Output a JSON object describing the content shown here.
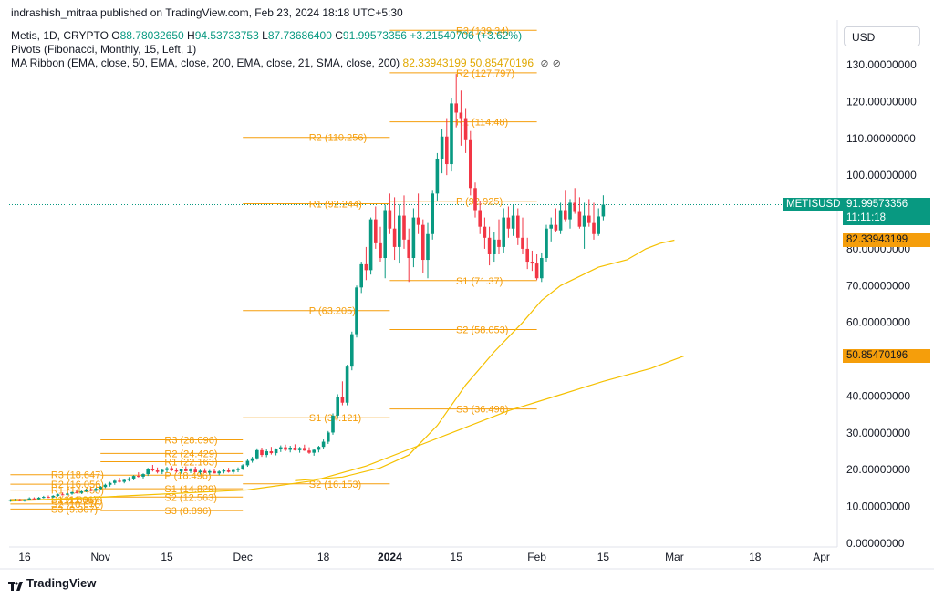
{
  "header": {
    "attribution": "indrashish_mitraa published on TradingView.com, Feb 23, 2024 18:18 UTC+5:30",
    "symbol": "Metis, 1D, CRYPTO",
    "o_label": "O",
    "o_value": "88.78032650",
    "h_label": "H",
    "h_value": "94.53733753",
    "l_label": "L",
    "l_value": "87.73686400",
    "c_label": "C",
    "c_value": "91.99573356",
    "change": "+3.21540706 (+3.62%)",
    "pivots": "Pivots (Fibonacci, Monthly, 15, Left, 1)",
    "ma_ribbon": "MA Ribbon (EMA, close, 50, EMA, close, 200, EMA, close, 21, SMA, close, 200)",
    "ma_val_1": "82.33943199",
    "ma_val_2": "50.85470196"
  },
  "currency": "USD",
  "price_tag": {
    "symbol": "METISUSD",
    "price": "91.99573356",
    "countdown": "11:11:18"
  },
  "ema_tags": [
    "82.33943199",
    "50.85470196"
  ],
  "brand": "TradingView",
  "colors": {
    "up": "#089981",
    "down": "#f23645",
    "pivot": "#f59e0b",
    "ma": "#f5c000"
  },
  "chart_data": {
    "type": "candlestick",
    "y_axis": {
      "ylim": [
        0,
        135
      ],
      "ticks": [
        0,
        10,
        20,
        30,
        40,
        50,
        60,
        70,
        80,
        90,
        100,
        110,
        120,
        130
      ],
      "tick_labels": [
        "0.00000000",
        "10.00000000",
        "20.00000000",
        "30.00000000",
        "40.00000000",
        "50.00000000",
        "60.00000000",
        "70.00000000",
        "80.00000000",
        "90.00000000",
        "100.00000000",
        "110.00000000",
        "120.00000000",
        "130.00000000"
      ]
    },
    "x_axis": {
      "start": "2023-10-13",
      "end": "2024-04-01",
      "ticks": [
        {
          "date": "2023-10-16",
          "label": "16",
          "bold": false
        },
        {
          "date": "2023-11-01",
          "label": "Nov",
          "bold": false
        },
        {
          "date": "2023-11-15",
          "label": "15",
          "bold": false
        },
        {
          "date": "2023-12-01",
          "label": "Dec",
          "bold": false
        },
        {
          "date": "2023-12-18",
          "label": "18",
          "bold": false
        },
        {
          "date": "2024-01-01",
          "label": "2024",
          "bold": true
        },
        {
          "date": "2024-01-15",
          "label": "15",
          "bold": false
        },
        {
          "date": "2024-02-01",
          "label": "Feb",
          "bold": false
        },
        {
          "date": "2024-02-15",
          "label": "15",
          "bold": false
        },
        {
          "date": "2024-03-01",
          "label": "Mar",
          "bold": false
        },
        {
          "date": "2024-03-18",
          "label": "18",
          "bold": false
        },
        {
          "date": "2024-04-01",
          "label": "Apr",
          "bold": false
        }
      ]
    },
    "candles": {
      "start_date": "2023-10-13",
      "ohlc": [
        [
          11.7,
          12.0,
          11.3,
          11.8
        ],
        [
          11.8,
          12.1,
          11.5,
          11.9
        ],
        [
          11.9,
          12.1,
          11.4,
          11.5
        ],
        [
          11.5,
          12.0,
          11.3,
          11.9
        ],
        [
          11.9,
          12.5,
          11.7,
          12.2
        ],
        [
          12.2,
          12.5,
          11.9,
          12.0
        ],
        [
          12.0,
          12.6,
          11.8,
          12.4
        ],
        [
          12.4,
          12.9,
          12.2,
          12.6
        ],
        [
          12.6,
          13.0,
          12.3,
          12.5
        ],
        [
          12.5,
          13.1,
          12.3,
          12.9
        ],
        [
          12.9,
          13.5,
          12.7,
          13.3
        ],
        [
          13.3,
          13.8,
          13.0,
          13.2
        ],
        [
          13.2,
          13.7,
          12.9,
          13.5
        ],
        [
          13.5,
          14.0,
          13.2,
          13.9
        ],
        [
          13.9,
          14.4,
          13.5,
          13.7
        ],
        [
          13.7,
          14.3,
          13.4,
          14.1
        ],
        [
          14.1,
          14.8,
          13.9,
          14.5
        ],
        [
          14.5,
          15.0,
          14.1,
          14.3
        ],
        [
          14.3,
          15.1,
          14.0,
          14.8
        ],
        [
          14.8,
          15.6,
          14.5,
          15.3
        ],
        [
          15.3,
          16.2,
          15.0,
          15.9
        ],
        [
          15.9,
          16.7,
          15.4,
          16.4
        ],
        [
          16.4,
          17.2,
          15.9,
          17.0
        ],
        [
          17.0,
          17.8,
          16.5,
          16.7
        ],
        [
          16.7,
          17.5,
          16.3,
          17.2
        ],
        [
          17.2,
          18.0,
          16.8,
          17.6
        ],
        [
          17.6,
          18.5,
          17.1,
          18.3
        ],
        [
          18.3,
          19.3,
          17.9,
          18.1
        ],
        [
          18.1,
          19.0,
          17.6,
          18.8
        ],
        [
          18.8,
          20.5,
          18.3,
          20.2
        ],
        [
          20.2,
          21.3,
          19.5,
          19.8
        ],
        [
          19.8,
          20.6,
          19.0,
          19.4
        ],
        [
          19.4,
          20.1,
          18.8,
          19.9
        ],
        [
          19.9,
          20.8,
          19.3,
          20.4
        ],
        [
          20.4,
          21.0,
          19.6,
          19.8
        ],
        [
          19.8,
          20.5,
          19.2,
          19.5
        ],
        [
          19.5,
          20.3,
          18.9,
          20.1
        ],
        [
          20.1,
          20.9,
          19.5,
          19.6
        ],
        [
          19.6,
          20.4,
          19.1,
          20.0
        ],
        [
          20.0,
          20.8,
          19.4,
          19.3
        ],
        [
          19.3,
          20.0,
          18.7,
          19.7
        ],
        [
          19.7,
          20.4,
          19.1,
          19.2
        ],
        [
          19.2,
          19.9,
          18.6,
          19.6
        ],
        [
          19.6,
          20.2,
          19.0,
          19.0
        ],
        [
          19.0,
          19.8,
          18.5,
          19.5
        ],
        [
          19.5,
          20.3,
          19.0,
          19.8
        ],
        [
          19.8,
          20.5,
          19.2,
          19.4
        ],
        [
          19.4,
          20.1,
          18.9,
          19.9
        ],
        [
          19.9,
          20.6,
          19.3,
          20.3
        ],
        [
          20.3,
          21.5,
          19.9,
          21.2
        ],
        [
          21.2,
          22.8,
          20.8,
          22.4
        ],
        [
          22.4,
          23.5,
          21.9,
          23.1
        ],
        [
          23.1,
          25.8,
          22.7,
          25.3
        ],
        [
          25.3,
          26.0,
          23.5,
          24.0
        ],
        [
          24.0,
          25.5,
          23.4,
          25.0
        ],
        [
          25.0,
          26.2,
          24.1,
          24.5
        ],
        [
          24.5,
          25.8,
          23.9,
          25.6
        ],
        [
          25.6,
          26.6,
          24.8,
          26.1
        ],
        [
          26.1,
          26.8,
          25.0,
          25.4
        ],
        [
          25.4,
          26.5,
          24.7,
          26.0
        ],
        [
          26.0,
          26.9,
          25.2,
          25.3
        ],
        [
          25.3,
          26.2,
          24.6,
          25.9
        ],
        [
          25.9,
          26.8,
          25.1,
          25.2
        ],
        [
          25.2,
          26.1,
          24.3,
          24.6
        ],
        [
          24.6,
          25.7,
          23.8,
          25.4
        ],
        [
          25.4,
          26.5,
          24.7,
          26.2
        ],
        [
          26.2,
          28.2,
          25.6,
          27.6
        ],
        [
          27.6,
          30.5,
          27.0,
          30.1
        ],
        [
          30.1,
          35.3,
          29.5,
          34.7
        ],
        [
          34.7,
          40.5,
          33.9,
          39.8
        ],
        [
          39.8,
          44.0,
          37.5,
          38.2
        ],
        [
          38.2,
          48.5,
          37.5,
          48.0
        ],
        [
          48.0,
          57.5,
          47.0,
          56.8
        ],
        [
          56.8,
          70.0,
          55.9,
          69.5
        ],
        [
          69.5,
          76.5,
          68.0,
          75.8
        ],
        [
          75.8,
          80.5,
          71.5,
          74.2
        ],
        [
          74.2,
          88.5,
          73.0,
          88.0
        ],
        [
          88.0,
          91.5,
          80.0,
          81.5
        ],
        [
          81.5,
          86.0,
          76.5,
          77.5
        ],
        [
          77.5,
          92.0,
          72.0,
          90.5
        ],
        [
          90.5,
          95.0,
          84.0,
          85.5
        ],
        [
          85.5,
          94.0,
          77.0,
          80.5
        ],
        [
          80.5,
          92.0,
          76.0,
          89.0
        ],
        [
          89.0,
          94.5,
          80.0,
          82.5
        ],
        [
          82.5,
          85.5,
          71.0,
          77.5
        ],
        [
          77.5,
          91.0,
          75.0,
          88.5
        ],
        [
          88.5,
          95.0,
          84.0,
          86.5
        ],
        [
          86.5,
          88.0,
          73.5,
          77.0
        ],
        [
          77.0,
          87.0,
          72.0,
          84.0
        ],
        [
          84.0,
          96.0,
          82.5,
          95.0
        ],
        [
          95.0,
          106.0,
          93.0,
          104.5
        ],
        [
          104.5,
          112.5,
          100.5,
          110.5
        ],
        [
          110.5,
          115.5,
          100.0,
          103.0
        ],
        [
          103.0,
          121.0,
          101.0,
          119.5
        ],
        [
          119.5,
          127.5,
          113.0,
          117.0
        ],
        [
          117.0,
          123.0,
          108.0,
          115.5
        ],
        [
          115.5,
          118.0,
          106.0,
          109.5
        ],
        [
          109.5,
          112.0,
          94.5,
          96.5
        ],
        [
          96.5,
          98.0,
          88.5,
          90.5
        ],
        [
          90.5,
          93.0,
          84.0,
          86.0
        ],
        [
          86.0,
          88.5,
          80.0,
          83.0
        ],
        [
          83.0,
          86.0,
          75.5,
          78.5
        ],
        [
          78.5,
          84.5,
          76.5,
          82.5
        ],
        [
          82.5,
          88.0,
          78.5,
          80.5
        ],
        [
          80.5,
          91.0,
          79.0,
          88.5
        ],
        [
          88.5,
          91.5,
          83.0,
          85.5
        ],
        [
          85.5,
          92.0,
          83.5,
          89.0
        ],
        [
          89.0,
          91.0,
          81.0,
          83.0
        ],
        [
          83.0,
          88.5,
          78.5,
          80.0
        ],
        [
          80.0,
          83.0,
          74.5,
          76.5
        ],
        [
          76.5,
          79.5,
          74.0,
          76.0
        ],
        [
          76.0,
          78.5,
          71.5,
          72.0
        ],
        [
          72.0,
          79.0,
          71.0,
          77.5
        ],
        [
          77.5,
          86.5,
          76.5,
          85.5
        ],
        [
          85.5,
          88.5,
          82.0,
          86.5
        ],
        [
          86.5,
          91.0,
          84.5,
          85.0
        ],
        [
          85.0,
          92.5,
          84.0,
          90.5
        ],
        [
          90.5,
          96.0,
          87.5,
          88.0
        ],
        [
          88.0,
          93.5,
          85.5,
          92.5
        ],
        [
          92.5,
          96.5,
          89.5,
          90.0
        ],
        [
          90.0,
          94.0,
          85.5,
          86.0
        ],
        [
          86.0,
          92.5,
          80.0,
          89.0
        ],
        [
          89.0,
          93.5,
          86.0,
          87.0
        ],
        [
          87.0,
          92.5,
          82.5,
          84.0
        ],
        [
          84.0,
          91.0,
          83.5,
          88.78
        ],
        [
          88.78,
          94.54,
          87.74,
          91.99573356
        ]
      ]
    },
    "ma_lines": [
      {
        "name": "EMA 50",
        "color": "#f5c000",
        "start_date": "2023-12-12",
        "points": [
          [
            0,
            17.0
          ],
          [
            10,
            18.0
          ],
          [
            18,
            20.5
          ],
          [
            24,
            24.0
          ],
          [
            30,
            32.0
          ],
          [
            36,
            43.0
          ],
          [
            42,
            52.0
          ],
          [
            48,
            60.0
          ],
          [
            52,
            66.0
          ],
          [
            56,
            70.0
          ],
          [
            60,
            72.5
          ],
          [
            64,
            75.0
          ],
          [
            70,
            77.0
          ],
          [
            72,
            78.5
          ],
          [
            74,
            80.0
          ],
          [
            77,
            81.5
          ],
          [
            80,
            82.33943199
          ]
        ]
      },
      {
        "name": "EMA 200",
        "color": "#f5c000",
        "start_date": "2023-10-13",
        "points": [
          [
            0,
            11.5
          ],
          [
            20,
            12.6
          ],
          [
            50,
            14.5
          ],
          [
            64,
            17.0
          ],
          [
            75,
            21.0
          ],
          [
            85,
            26.0
          ],
          [
            95,
            31.0
          ],
          [
            105,
            36.0
          ],
          [
            115,
            40.0
          ],
          [
            125,
            44.0
          ],
          [
            135,
            47.5
          ],
          [
            142,
            50.85470196
          ]
        ]
      }
    ],
    "pivot_sets": [
      {
        "from": "2023-10-13",
        "to": "2023-11-01",
        "levels": [
          {
            "name": "R3",
            "value": 18.647,
            "label": "R3 (18.647)"
          },
          {
            "name": "R2",
            "value": 16.056,
            "label": "R2 (16.056)"
          },
          {
            "name": "R1",
            "value": 14.455,
            "label": "R1 (14.455)"
          },
          {
            "name": "P",
            "value": 11.866,
            "label": "P (11.866)"
          },
          {
            "name": "S1",
            "value": 11.917,
            "label": "S1 (11.917)"
          },
          {
            "name": "S2",
            "value": 10.676,
            "label": "S2 (10.676)"
          },
          {
            "name": "S3",
            "value": 9.307,
            "label": "S3 (9.307)"
          }
        ]
      },
      {
        "from": "2023-11-01",
        "to": "2023-12-01",
        "levels": [
          {
            "name": "R3",
            "value": 28.096,
            "label": "R3 (28.096)"
          },
          {
            "name": "R2",
            "value": 24.429,
            "label": "R2 (24.429)"
          },
          {
            "name": "R1",
            "value": 22.163,
            "label": "R1 (22.163)"
          },
          {
            "name": "P",
            "value": 18.496,
            "label": "P (18.496)"
          },
          {
            "name": "S1",
            "value": 14.829,
            "label": "S1 (14.829)"
          },
          {
            "name": "S2",
            "value": 12.563,
            "label": "S2 (12.563)"
          },
          {
            "name": "S3",
            "value": 8.896,
            "label": "S3 (8.896)"
          }
        ]
      },
      {
        "from": "2023-12-01",
        "to": "2024-01-01",
        "levels": [
          {
            "name": "R2",
            "value": 110.256,
            "label": "R2 (110.256)"
          },
          {
            "name": "R1",
            "value": 92.244,
            "label": "R1 (92.244)"
          },
          {
            "name": "P",
            "value": 63.205,
            "label": "P (63.205)"
          },
          {
            "name": "S1",
            "value": 34.121,
            "label": "S1 (34.121)"
          },
          {
            "name": "S2",
            "value": 16.153,
            "label": "S2 (16.153)"
          }
        ]
      },
      {
        "from": "2024-01-01",
        "to": "2024-02-01",
        "levels": [
          {
            "name": "R3",
            "value": 139.34,
            "label": "R3 (139.34)"
          },
          {
            "name": "R2",
            "value": 127.797,
            "label": "R2 (127.797)"
          },
          {
            "name": "R1",
            "value": 114.48,
            "label": "R1 (114.48)"
          },
          {
            "name": "P",
            "value": 92.925,
            "label": "P (92.925)"
          },
          {
            "name": "S1",
            "value": 71.37,
            "label": "S1 (71.37)"
          },
          {
            "name": "S2",
            "value": 58.053,
            "label": "S2 (58.053)"
          },
          {
            "name": "S3",
            "value": 36.498,
            "label": "S3 (36.498)"
          }
        ]
      }
    ],
    "last_price": 91.99573356,
    "grid": false
  }
}
